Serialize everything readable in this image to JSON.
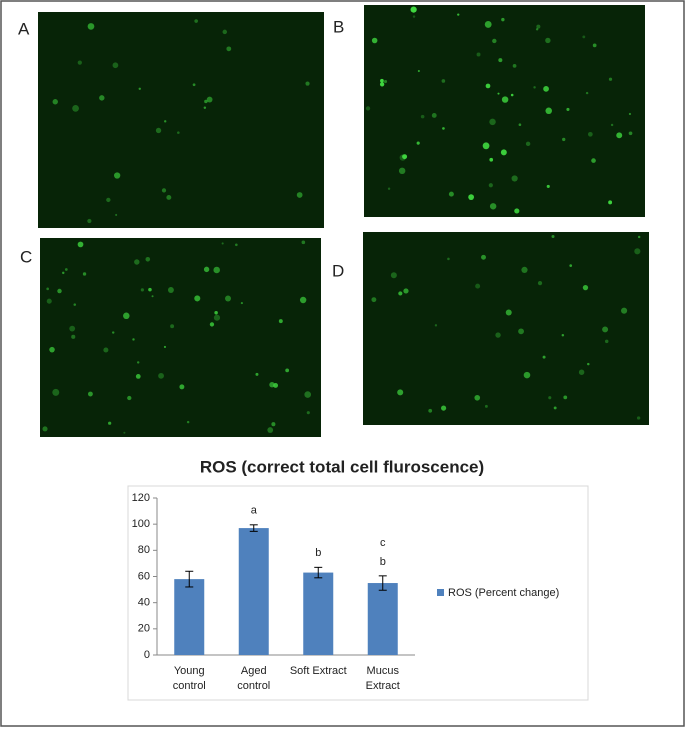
{
  "panels": [
    {
      "label": "A"
    },
    {
      "label": "B"
    },
    {
      "label": "C"
    },
    {
      "label": "D"
    }
  ],
  "chart_data": {
    "type": "bar",
    "title": "ROS (correct total cell fluroscence)",
    "categories": [
      [
        "Young",
        "control"
      ],
      [
        "Aged",
        "control"
      ],
      [
        "Soft Extract"
      ],
      [
        "Mucus",
        "Extract"
      ]
    ],
    "series": [
      {
        "name": "ROS (Percent change)",
        "color": "#4f81bd",
        "values": [
          58,
          97,
          63,
          55
        ],
        "errors": [
          6,
          2.5,
          4,
          5.5
        ]
      }
    ],
    "bar_letters": [
      [],
      [
        "a"
      ],
      [
        "b"
      ],
      [
        "c",
        "b"
      ]
    ],
    "ylim": [
      0,
      120
    ],
    "yticks": [
      0,
      20,
      40,
      60,
      80,
      100,
      120
    ],
    "grid": false,
    "legend": "right"
  }
}
